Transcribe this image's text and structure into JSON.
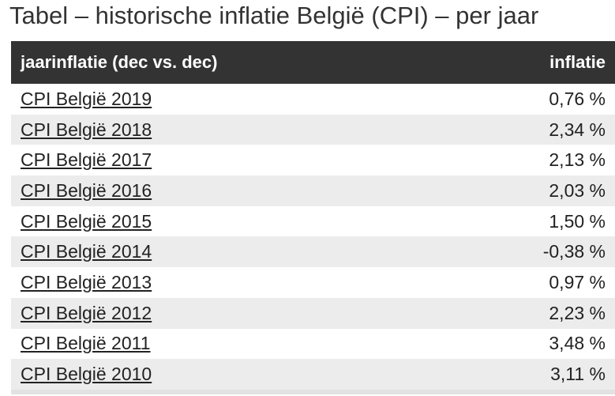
{
  "header": {
    "title": "Tabel – historische inflatie België (CPI) – per jaar"
  },
  "table": {
    "columns": [
      "jaarinflatie (dec vs. dec)",
      "inflatie"
    ],
    "rows": [
      [
        "CPI België 2019",
        "0,76 %"
      ],
      [
        "CPI België 2018",
        "2,34 %"
      ],
      [
        "CPI België 2017",
        "2,13 %"
      ],
      [
        "CPI België 2016",
        "2,03 %"
      ],
      [
        "CPI België 2015",
        "1,50 %"
      ],
      [
        "CPI België 2014",
        "-0,38 %"
      ],
      [
        "CPI België 2013",
        "0,97 %"
      ],
      [
        "CPI België 2012",
        "2,23 %"
      ],
      [
        "CPI België 2011",
        "3,48 %"
      ],
      [
        "CPI België 2010",
        "3,11 %"
      ]
    ]
  }
}
